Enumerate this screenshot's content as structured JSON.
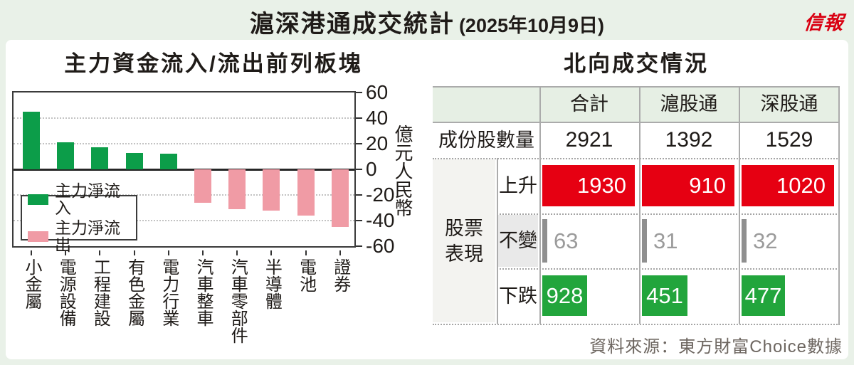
{
  "header": {
    "title": "滬深港通成交統計",
    "date": "(2025年10月9日)",
    "logo": "信報"
  },
  "colors": {
    "page_bg": "#e9f1e8",
    "inflow_green": "#0c9d49",
    "outflow_pink": "#f09ba5",
    "up_red": "#e60012",
    "down_green": "#22a53c",
    "unchanged_gray": "#8f8f8f",
    "unchanged_text": "#9b9b9b",
    "header_row_bg": "#e6efe4",
    "logo_red": "#d90012"
  },
  "chart_data": [
    {
      "type": "bar",
      "title": "主力資金流入/流出前列板塊",
      "ylabel": "億元人民幣",
      "ylim": [
        -60,
        60
      ],
      "yticks": [
        60,
        40,
        20,
        0,
        -20,
        -40,
        -60
      ],
      "grid": "dotted horizontal at ±20 and ±40",
      "legend_position": "inside bottom-left",
      "categories": [
        "小金屬",
        "電源設備",
        "工程建設",
        "有色金屬",
        "電力行業",
        "汽車整車",
        "汽車零部件",
        "半導體",
        "電池",
        "證券"
      ],
      "values": [
        45,
        21,
        17,
        13,
        12,
        -26,
        -31,
        -32,
        -36,
        -45
      ],
      "legend": [
        {
          "label": "主力淨流入",
          "color": "#0c9d49"
        },
        {
          "label": "主力淨流出",
          "color": "#f09ba5"
        }
      ]
    },
    {
      "type": "table",
      "title": "北向成交情況",
      "columns": [
        "合計",
        "滬股通",
        "深股通"
      ],
      "constituents": {
        "label": "成份股數量",
        "values": [
          2921,
          1392,
          1529
        ]
      },
      "performance": {
        "group_label": "股票\n表現",
        "rows": [
          {
            "label": "上升",
            "kind": "up",
            "values": [
              1930,
              910,
              1020
            ],
            "color": "#e60012"
          },
          {
            "label": "不變",
            "kind": "flat",
            "values": [
              63,
              31,
              32
            ],
            "color": "#8f8f8f"
          },
          {
            "label": "下跌",
            "kind": "down",
            "values": [
              928,
              451,
              477
            ],
            "color": "#22a53c"
          }
        ]
      }
    }
  ],
  "source": "資料來源：東方財富Choice數據"
}
